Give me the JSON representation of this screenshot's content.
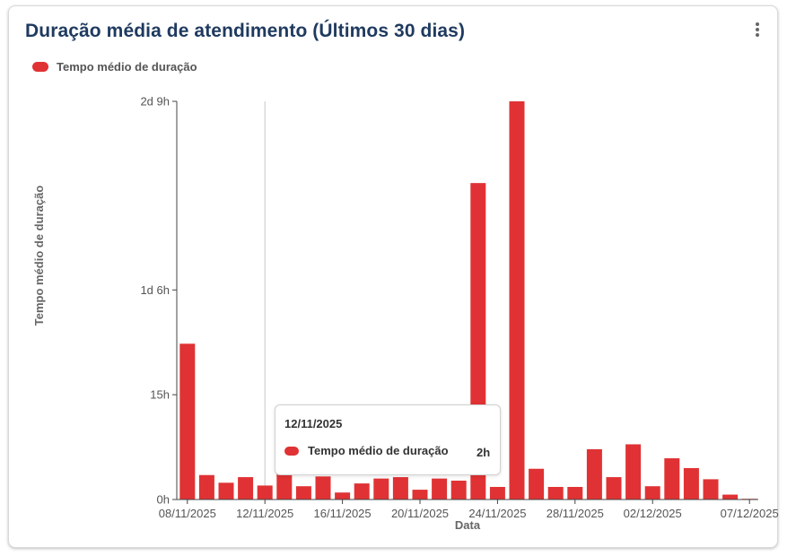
{
  "card": {
    "title": "Duração média de atendimento (Últimos 30 dias)",
    "menu_icon": "vertical-ellipsis-icon"
  },
  "colors": {
    "bar": "#e03234",
    "title": "#1f3a5f",
    "axis": "#555555"
  },
  "chart_data": {
    "type": "bar",
    "title": "Duração média de atendimento (Últimos 30 dias)",
    "legend": [
      "Tempo médio de duração"
    ],
    "legend_position": "top-left",
    "xlabel": "Data",
    "ylabel": "Tempo médio de duração",
    "y_unit": "hours",
    "ylim": [
      0,
      57
    ],
    "y_ticks": [
      {
        "value": 0,
        "label": "0h"
      },
      {
        "value": 15,
        "label": "15h"
      },
      {
        "value": 30,
        "label": "1d 6h"
      },
      {
        "value": 57,
        "label": "2d 9h"
      }
    ],
    "x_tick_labels": [
      "08/11/2025",
      "12/11/2025",
      "16/11/2025",
      "20/11/2025",
      "24/11/2025",
      "28/11/2025",
      "02/12/2025",
      "07/12/2025"
    ],
    "categories": [
      "08/11/2025",
      "09/11/2025",
      "10/11/2025",
      "11/11/2025",
      "12/11/2025",
      "13/11/2025",
      "14/11/2025",
      "15/11/2025",
      "16/11/2025",
      "17/11/2025",
      "18/11/2025",
      "19/11/2025",
      "20/11/2025",
      "21/11/2025",
      "22/11/2025",
      "23/11/2025",
      "24/11/2025",
      "25/11/2025",
      "26/11/2025",
      "27/11/2025",
      "28/11/2025",
      "29/11/2025",
      "30/11/2025",
      "01/12/2025",
      "02/12/2025",
      "03/12/2025",
      "04/12/2025",
      "05/12/2025",
      "06/12/2025",
      "07/12/2025"
    ],
    "series": [
      {
        "name": "Tempo médio de duração",
        "values": [
          22.3,
          3.5,
          2.4,
          3.2,
          2.0,
          3.9,
          1.9,
          3.3,
          1.0,
          2.3,
          3.0,
          3.2,
          1.4,
          3.0,
          2.7,
          45.3,
          1.8,
          57.0,
          4.4,
          1.8,
          1.8,
          7.2,
          3.2,
          7.9,
          1.9,
          5.9,
          4.5,
          2.9,
          0.7,
          0.1
        ]
      }
    ],
    "highlight_index": 4,
    "grid": false
  },
  "tooltip": {
    "date": "12/11/2025",
    "series_label": "Tempo médio de duração",
    "value": "2h"
  }
}
